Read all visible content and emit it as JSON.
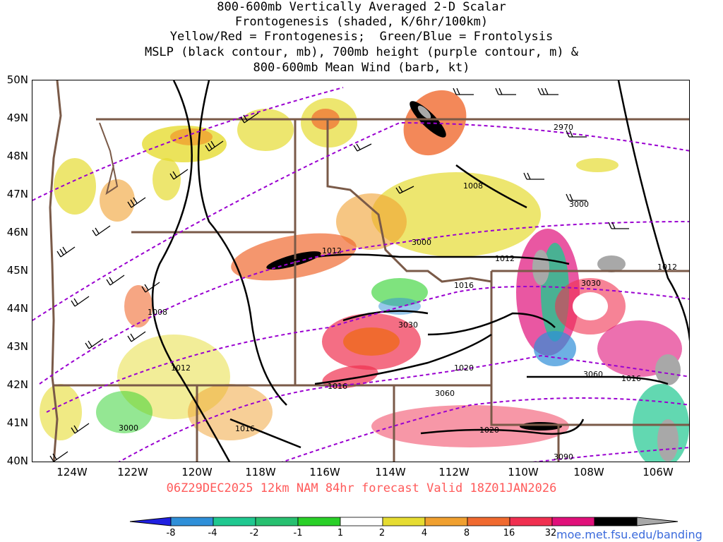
{
  "title_lines": [
    "800-600mb Vertically Averaged 2-D Scalar",
    "Frontogenesis (shaded, K/6hr/100km)",
    "Yellow/Red = Frontogenesis;  Green/Blue = Frontolysis",
    "MSLP (black contour, mb), 700mb height (purple contour, m) &",
    "800-600mb Mean Wind (barb, kt)"
  ],
  "lat_labels": [
    "50N",
    "49N",
    "48N",
    "47N",
    "46N",
    "45N",
    "44N",
    "43N",
    "42N",
    "41N",
    "40N"
  ],
  "lon_labels": [
    "124W",
    "122W",
    "120W",
    "118W",
    "116W",
    "114W",
    "112W",
    "110W",
    "108W",
    "106W"
  ],
  "valid_text": "06Z29DEC2025 12km NAM 84hr forecast Valid 18Z01JAN2026",
  "colorbar": {
    "labels": [
      "-8",
      "-4",
      "-2",
      "-1",
      "1",
      "2",
      "4",
      "8",
      "16",
      "32"
    ],
    "colors": [
      "#2020e0",
      "#2f8fd8",
      "#20c890",
      "#28c070",
      "#2ad028",
      "#ffffff",
      "#e6dc32",
      "#f0a030",
      "#f06a30",
      "#f03050",
      "#e0107a",
      "#000000",
      "#a8a8a8"
    ]
  },
  "mslp_labels": [
    "1008",
    "1012",
    "1012",
    "1016",
    "1020",
    "1016",
    "1008",
    "1012",
    "1016",
    "1012",
    "1016",
    "1020"
  ],
  "height_labels": [
    "2970",
    "3000",
    "3000",
    "3030",
    "3060",
    "3060",
    "3030",
    "3090",
    "3000"
  ],
  "credit": "moe.met.fsu.edu/banding",
  "colors": {
    "mslp": "#000000",
    "height": "#9a00d0",
    "borders": "#7a5a48",
    "title_valid": "#ff5a5a"
  }
}
